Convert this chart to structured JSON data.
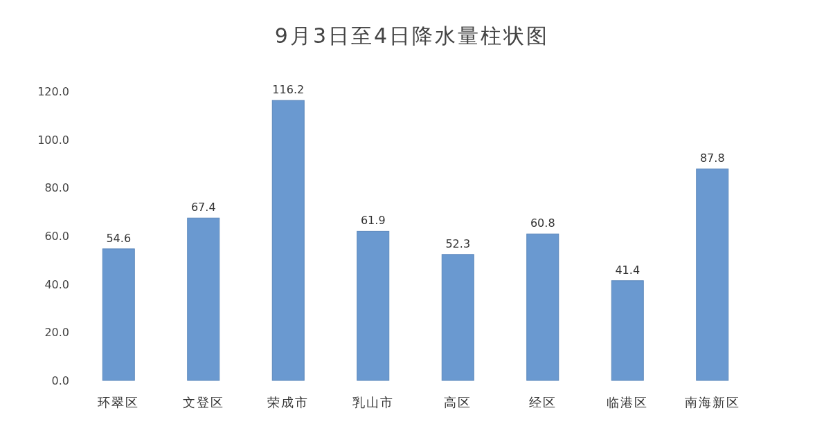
{
  "chart_data": {
    "type": "bar",
    "title": "9月3日至4日降水量柱状图",
    "categories": [
      "环翠区",
      "文登区",
      "荣成市",
      "乳山市",
      "高区",
      "经区",
      "临港区",
      "南海新区"
    ],
    "values": [
      54.6,
      67.4,
      116.2,
      61.9,
      52.3,
      60.8,
      41.4,
      87.8
    ],
    "color": "#6a99d0",
    "ylim": [
      0,
      120
    ],
    "yticks": [
      {
        "value": 0,
        "label": "0.0"
      },
      {
        "value": 20,
        "label": "20.0"
      },
      {
        "value": 40,
        "label": "40.0"
      },
      {
        "value": 60,
        "label": "60.0"
      },
      {
        "value": 80,
        "label": "80.0"
      },
      {
        "value": 100,
        "label": "100.0"
      },
      {
        "value": 120,
        "label": "120.0"
      }
    ],
    "data_labels": true,
    "grid": false
  }
}
